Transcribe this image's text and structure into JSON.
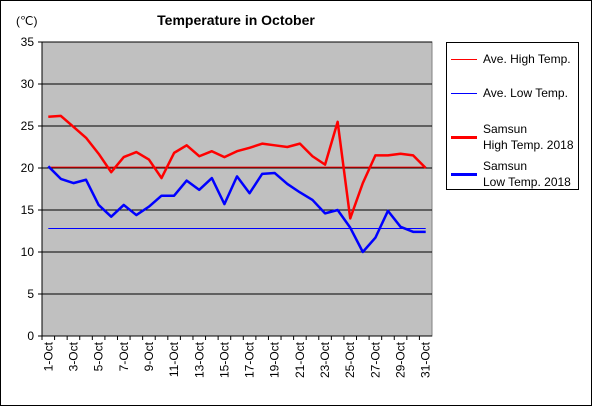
{
  "chart_data": {
    "type": "line",
    "title": "Temperature in October",
    "y_label": "(℃)",
    "categories": [
      "1-Oct",
      null,
      "3-Oct",
      null,
      "5-Oct",
      null,
      "7-Oct",
      null,
      "9-Oct",
      null,
      "11-Oct",
      null,
      "13-Oct",
      null,
      "15-Oct",
      null,
      "17-Oct",
      null,
      "19-Oct",
      null,
      "21-Oct",
      null,
      "23-Oct",
      null,
      "25-Oct",
      null,
      "27-Oct",
      null,
      "29-Oct",
      null,
      "31-Oct"
    ],
    "series": [
      {
        "name": "Ave. High Temp.",
        "color": "#ff0000",
        "values": [
          20.1,
          20.1,
          20.1,
          20.1,
          20.1,
          20.1,
          20.1,
          20.1,
          20.1,
          20.1,
          20.1,
          20.1,
          20.1,
          20.1,
          20.1,
          20.1,
          20.1,
          20.1,
          20.1,
          20.1,
          20.1,
          20.1,
          20.1,
          20.1,
          20.1,
          20.1,
          20.1,
          20.1,
          20.1,
          20.1,
          20.1
        ]
      },
      {
        "name": "Ave. Low Temp.",
        "color": "#0000ff",
        "values": [
          12.8,
          12.8,
          12.8,
          12.8,
          12.8,
          12.8,
          12.8,
          12.8,
          12.8,
          12.8,
          12.8,
          12.8,
          12.8,
          12.8,
          12.8,
          12.8,
          12.8,
          12.8,
          12.8,
          12.8,
          12.8,
          12.8,
          12.8,
          12.8,
          12.8,
          12.8,
          12.8,
          12.8,
          12.8,
          12.8,
          12.8
        ]
      },
      {
        "name": "Samsun\nHigh Temp. 2018",
        "color": "#ff0000",
        "values": [
          26.1,
          26.2,
          24.9,
          23.6,
          21.7,
          19.5,
          21.3,
          21.9,
          21.0,
          18.8,
          21.8,
          22.7,
          21.4,
          22.0,
          21.3,
          22.0,
          22.4,
          22.9,
          22.7,
          22.5,
          22.9,
          21.4,
          20.4,
          25.5,
          14.0,
          18.2,
          21.5,
          21.5,
          21.7,
          21.5,
          20.0
        ]
      },
      {
        "name": "Samsun\nLow Temp. 2018",
        "color": "#0000ff",
        "values": [
          20.2,
          18.7,
          18.2,
          18.6,
          15.6,
          14.2,
          15.6,
          14.4,
          15.4,
          16.7,
          16.7,
          18.5,
          17.4,
          18.8,
          15.7,
          19.0,
          17.0,
          19.3,
          19.4,
          18.1,
          17.1,
          16.2,
          14.6,
          15.0,
          12.9,
          10.0,
          11.7,
          14.9,
          13.0,
          12.4,
          12.4
        ]
      }
    ],
    "ylim": [
      0,
      35
    ],
    "yticks": [
      0,
      5,
      10,
      15,
      20,
      25,
      30,
      35
    ],
    "grid": true,
    "legend": "right"
  }
}
